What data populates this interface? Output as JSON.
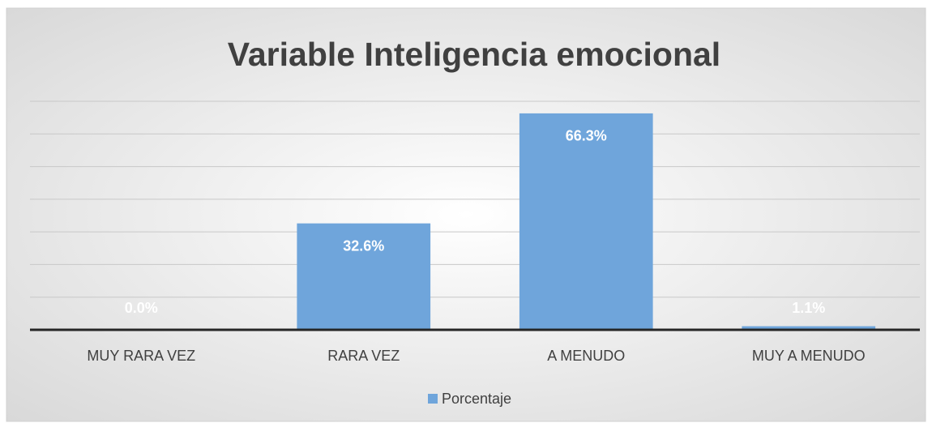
{
  "chart_data": {
    "type": "bar",
    "title": "Variable Inteligencia emocional",
    "categories": [
      "MUY RARA VEZ",
      "RARA VEZ",
      "A MENUDO",
      "MUY A MENUDO"
    ],
    "series": [
      {
        "name": "Porcentaje",
        "color": "#6fa5db",
        "values": [
          0.0,
          32.6,
          66.3,
          1.1
        ],
        "value_labels": [
          "0.0%",
          "32.6%",
          "66.3%",
          "1.1%"
        ]
      }
    ],
    "ylim": [
      0,
      70
    ],
    "yticks": [
      0,
      10,
      20,
      30,
      40,
      50,
      60,
      70
    ],
    "grid": true,
    "legend": "bottom"
  }
}
